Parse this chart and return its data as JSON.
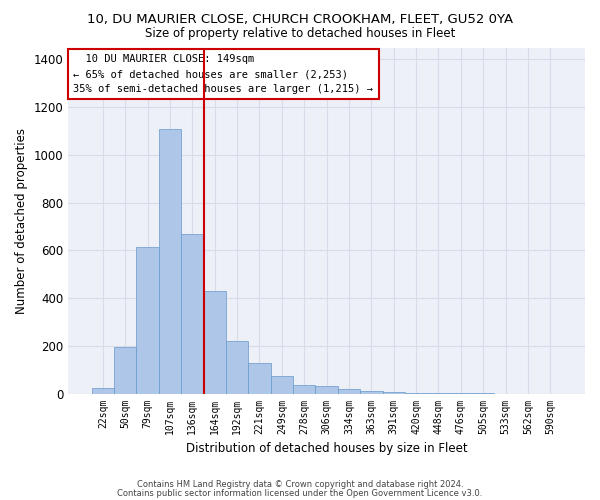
{
  "title1": "10, DU MAURIER CLOSE, CHURCH CROOKHAM, FLEET, GU52 0YA",
  "title2": "Size of property relative to detached houses in Fleet",
  "xlabel": "Distribution of detached houses by size in Fleet",
  "ylabel": "Number of detached properties",
  "categories": [
    "22sqm",
    "50sqm",
    "79sqm",
    "107sqm",
    "136sqm",
    "164sqm",
    "192sqm",
    "221sqm",
    "249sqm",
    "278sqm",
    "306sqm",
    "334sqm",
    "363sqm",
    "391sqm",
    "420sqm",
    "448sqm",
    "476sqm",
    "505sqm",
    "533sqm",
    "562sqm",
    "590sqm"
  ],
  "values": [
    22,
    195,
    615,
    1110,
    670,
    430,
    220,
    130,
    75,
    35,
    30,
    20,
    10,
    5,
    3,
    2,
    1,
    1,
    0,
    0,
    0
  ],
  "bar_color": "#aec6e8",
  "bar_edge_color": "#6699cc",
  "vline_x_index": 4.5,
  "vline_color": "#cc0000",
  "annotation_text": "  10 DU MAURIER CLOSE: 149sqm  \n← 65% of detached houses are smaller (2,253)\n35% of semi-detached houses are larger (1,215) →",
  "annotation_box_color": "#ffffff",
  "annotation_box_edge": "#cc0000",
  "ylim": [
    0,
    1450
  ],
  "yticks": [
    0,
    200,
    400,
    600,
    800,
    1000,
    1200,
    1400
  ],
  "grid_color": "#d8dce8",
  "bg_color": "#eef0f8",
  "footer1": "Contains HM Land Registry data © Crown copyright and database right 2024.",
  "footer2": "Contains public sector information licensed under the Open Government Licence v3.0."
}
